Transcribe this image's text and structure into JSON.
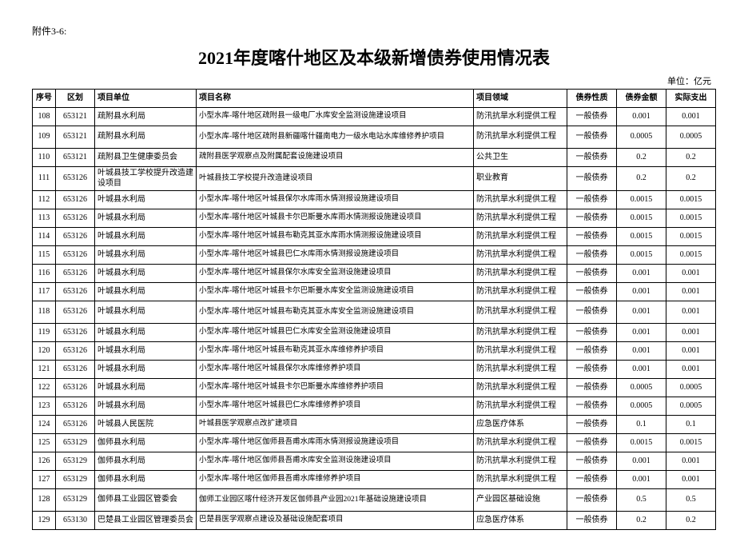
{
  "attach": "附件3-6:",
  "title": "2021年度喀什地区及本级新增债券使用情况表",
  "unit": "单位：亿元",
  "headers": {
    "seq": "序号",
    "zone": "区划",
    "unit": "项目单位",
    "name": "项目名称",
    "field": "项目领域",
    "nature": "债券性质",
    "amount": "债券金额",
    "actual": "实际支出"
  },
  "rows": [
    {
      "seq": "108",
      "zone": "653121",
      "unit": "疏附县水利局",
      "name": "小型水库-喀什地区疏附县一级电厂水库安全监测设施建设项目",
      "field": "防汛抗旱水利提供工程",
      "nature": "一般债券",
      "amount": "0.001",
      "actual": "0.001"
    },
    {
      "seq": "109",
      "zone": "653121",
      "unit": "疏附县水利局",
      "name": "小型水库-喀什地区疏附县新疆喀什疆南电力一级水电站水库维修养护项目",
      "field": "防汛抗旱水利提供工程",
      "nature": "一般债券",
      "amount": "0.0005",
      "actual": "0.0005",
      "tall": true
    },
    {
      "seq": "110",
      "zone": "653121",
      "unit": "疏附县卫生健康委员会",
      "name": "疏附县医学观察点及附属配套设施建设项目",
      "field": "公共卫生",
      "nature": "一般债券",
      "amount": "0.2",
      "actual": "0.2"
    },
    {
      "seq": "111",
      "zone": "653126",
      "unit": "叶城县技工学校提升改造建设项目",
      "name": "叶城县技工学校提升改造建设项目",
      "field": "职业教育",
      "nature": "一般债券",
      "amount": "0.2",
      "actual": "0.2"
    },
    {
      "seq": "112",
      "zone": "653126",
      "unit": "叶城县水利局",
      "name": "小型水库-喀什地区叶城县保尔水库雨水情测报设施建设项目",
      "field": "防汛抗旱水利提供工程",
      "nature": "一般债券",
      "amount": "0.0015",
      "actual": "0.0015"
    },
    {
      "seq": "113",
      "zone": "653126",
      "unit": "叶城县水利局",
      "name": "小型水库-喀什地区叶城县卡尔巴斯曼水库雨水情测报设施建设项目",
      "field": "防汛抗旱水利提供工程",
      "nature": "一般债券",
      "amount": "0.0015",
      "actual": "0.0015"
    },
    {
      "seq": "114",
      "zone": "653126",
      "unit": "叶城县水利局",
      "name": "小型水库-喀什地区叶城县布勒克其亚水库雨水情测报设施建设项目",
      "field": "防汛抗旱水利提供工程",
      "nature": "一般债券",
      "amount": "0.0015",
      "actual": "0.0015"
    },
    {
      "seq": "115",
      "zone": "653126",
      "unit": "叶城县水利局",
      "name": "小型水库-喀什地区叶城县巴仁水库雨水情测报设施建设项目",
      "field": "防汛抗旱水利提供工程",
      "nature": "一般债券",
      "amount": "0.0015",
      "actual": "0.0015"
    },
    {
      "seq": "116",
      "zone": "653126",
      "unit": "叶城县水利局",
      "name": "小型水库-喀什地区叶城县保尔水库安全监测设施建设项目",
      "field": "防汛抗旱水利提供工程",
      "nature": "一般债券",
      "amount": "0.001",
      "actual": "0.001"
    },
    {
      "seq": "117",
      "zone": "653126",
      "unit": "叶城县水利局",
      "name": "小型水库-喀什地区叶城县卡尔巴斯曼水库安全监测设施建设项目",
      "field": "防汛抗旱水利提供工程",
      "nature": "一般债券",
      "amount": "0.001",
      "actual": "0.001"
    },
    {
      "seq": "118",
      "zone": "653126",
      "unit": "叶城县水利局",
      "name": "小型水库-喀什地区叶城县布勒克其亚水库安全监测设施建设项目",
      "field": "防汛抗旱水利提供工程",
      "nature": "一般债券",
      "amount": "0.001",
      "actual": "0.001",
      "tall": true
    },
    {
      "seq": "119",
      "zone": "653126",
      "unit": "叶城县水利局",
      "name": "小型水库-喀什地区叶城县巴仁水库安全监测设施建设项目",
      "field": "防汛抗旱水利提供工程",
      "nature": "一般债券",
      "amount": "0.001",
      "actual": "0.001"
    },
    {
      "seq": "120",
      "zone": "653126",
      "unit": "叶城县水利局",
      "name": "小型水库-喀什地区叶城县布勒克其亚水库维修养护项目",
      "field": "防汛抗旱水利提供工程",
      "nature": "一般债券",
      "amount": "0.001",
      "actual": "0.001"
    },
    {
      "seq": "121",
      "zone": "653126",
      "unit": "叶城县水利局",
      "name": "小型水库-喀什地区叶城县保尔水库维修养护项目",
      "field": "防汛抗旱水利提供工程",
      "nature": "一般债券",
      "amount": "0.001",
      "actual": "0.001"
    },
    {
      "seq": "122",
      "zone": "653126",
      "unit": "叶城县水利局",
      "name": "小型水库-喀什地区叶城县卡尔巴斯曼水库维修养护项目",
      "field": "防汛抗旱水利提供工程",
      "nature": "一般债券",
      "amount": "0.0005",
      "actual": "0.0005"
    },
    {
      "seq": "123",
      "zone": "653126",
      "unit": "叶城县水利局",
      "name": "小型水库-喀什地区叶城县巴仁水库维修养护项目",
      "field": "防汛抗旱水利提供工程",
      "nature": "一般债券",
      "amount": "0.0005",
      "actual": "0.0005"
    },
    {
      "seq": "124",
      "zone": "653126",
      "unit": "叶城县人民医院",
      "name": "叶城县医学观察点改扩建项目",
      "field": "应急医疗体系",
      "nature": "一般债券",
      "amount": "0.1",
      "actual": "0.1"
    },
    {
      "seq": "125",
      "zone": "653129",
      "unit": "伽师县水利局",
      "name": "小型水库-喀什地区伽师县吾甫水库雨水情测报设施建设项目",
      "field": "防汛抗旱水利提供工程",
      "nature": "一般债券",
      "amount": "0.0015",
      "actual": "0.0015"
    },
    {
      "seq": "126",
      "zone": "653129",
      "unit": "伽师县水利局",
      "name": "小型水库-喀什地区伽师县吾甫水库安全监测设施建设项目",
      "field": "防汛抗旱水利提供工程",
      "nature": "一般债券",
      "amount": "0.001",
      "actual": "0.001"
    },
    {
      "seq": "127",
      "zone": "653129",
      "unit": "伽师县水利局",
      "name": "小型水库-喀什地区伽师县吾甫水库维修养护项目",
      "field": "防汛抗旱水利提供工程",
      "nature": "一般债券",
      "amount": "0.001",
      "actual": "0.001"
    },
    {
      "seq": "128",
      "zone": "653129",
      "unit": "伽师县工业园区管委会",
      "name": "伽师工业园区喀什经济开发区伽师县产业园2021年基础设施建设项目",
      "field": "产业园区基础设施",
      "nature": "一般债券",
      "amount": "0.5",
      "actual": "0.5",
      "tall": true
    },
    {
      "seq": "129",
      "zone": "653130",
      "unit": "巴楚县工业园区管理委员会",
      "name": "巴楚县医学观察点建设及基础设施配套项目",
      "field": "应急医疗体系",
      "nature": "一般债券",
      "amount": "0.2",
      "actual": "0.2"
    }
  ]
}
